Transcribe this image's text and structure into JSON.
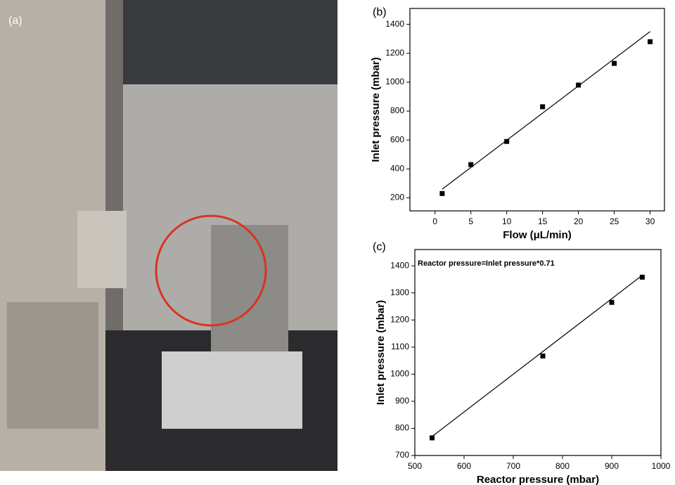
{
  "photo_label": "(a)",
  "chart_data": [
    {
      "type": "scatter",
      "panel_label": "(b)",
      "x_label": "Flow (μL/min)",
      "y_label": "Inlet pressure (mbar)",
      "color": "#000000",
      "x": [
        1,
        5,
        10,
        15,
        20,
        25,
        30
      ],
      "y": [
        230,
        430,
        590,
        830,
        980,
        1130,
        1280
      ],
      "fit": {
        "x": [
          1,
          30
        ],
        "y": [
          260,
          1350
        ]
      },
      "xlim": [
        -3.5,
        32
      ],
      "ylim": [
        110,
        1510
      ],
      "xticks": [
        0,
        5,
        10,
        15,
        20,
        25,
        30
      ],
      "yticks": [
        200,
        400,
        600,
        800,
        1000,
        1200,
        1400
      ]
    },
    {
      "type": "scatter",
      "panel_label": "(c)",
      "x_label": "Reactor pressure (mbar)",
      "y_label": "Inlet pressure (mbar)",
      "annotation": "Reactor pressure=Inlet pressure*0.71",
      "color": "#000000",
      "x": [
        535,
        760,
        900,
        962
      ],
      "y": [
        765,
        1067,
        1265,
        1358
      ],
      "fit": {
        "x": [
          535,
          962
        ],
        "y": [
          770,
          1365
        ]
      },
      "xlim": [
        500,
        1000
      ],
      "ylim": [
        700,
        1460
      ],
      "xticks": [
        500,
        600,
        700,
        800,
        900,
        1000
      ],
      "yticks": [
        700,
        800,
        900,
        1000,
        1100,
        1200,
        1300,
        1400
      ]
    }
  ]
}
